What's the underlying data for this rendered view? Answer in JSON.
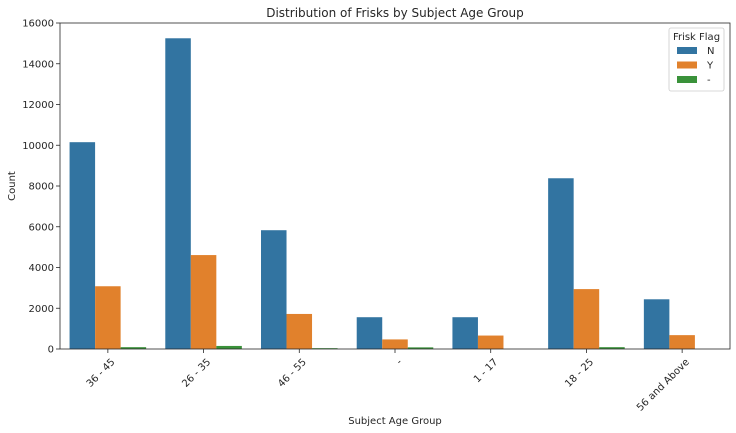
{
  "chart_data": {
    "type": "bar",
    "title": "Distribution of Frisks by Subject Age Group",
    "xlabel": "Subject Age Group",
    "ylabel": "Count",
    "ylim": [
      0,
      16000
    ],
    "yticks": [
      0,
      2000,
      4000,
      6000,
      8000,
      10000,
      12000,
      14000,
      16000
    ],
    "categories": [
      "36 - 45",
      "26 - 35",
      "46 - 55",
      "-",
      "1 - 17",
      "18 - 25",
      "56 and Above"
    ],
    "series": [
      {
        "name": "N",
        "color": "#3274a1",
        "values": [
          10150,
          15250,
          5830,
          1560,
          1560,
          8380,
          2440
        ]
      },
      {
        "name": "Y",
        "color": "#e1812c",
        "values": [
          3080,
          4610,
          1720,
          470,
          660,
          2940,
          680
        ]
      },
      {
        "name": "-",
        "color": "#3a923a",
        "values": [
          90,
          150,
          40,
          80,
          0,
          90,
          0
        ]
      }
    ],
    "legend": {
      "title": "Frisk Flag",
      "placement": "top-right"
    },
    "grid": false
  }
}
